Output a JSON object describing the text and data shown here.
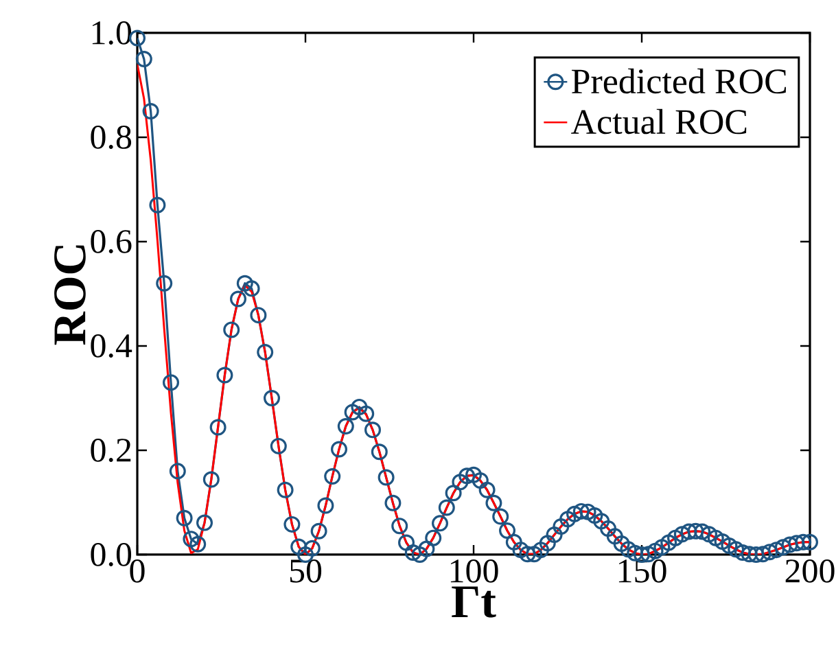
{
  "chart_data": {
    "type": "line",
    "xlabel": "Γt",
    "ylabel": "ROC",
    "xlim": [
      0,
      200
    ],
    "ylim": [
      0,
      1.0
    ],
    "xticks": [
      0,
      50,
      100,
      150,
      200
    ],
    "yticks": [
      {
        "value": 0,
        "label": "0.0"
      },
      {
        "value": 0.2,
        "label": "0.2"
      },
      {
        "value": 0.4,
        "label": "0.4"
      },
      {
        "value": 0.6,
        "label": "0.6"
      },
      {
        "value": 0.8,
        "label": "0.8"
      },
      {
        "value": 1.0,
        "label": "1.0"
      }
    ],
    "legend": "top right",
    "x": [
      0,
      2,
      4,
      6,
      8,
      10,
      12,
      14,
      16,
      18,
      20,
      22,
      24,
      26,
      28,
      30,
      32,
      34,
      36,
      38,
      40,
      42,
      44,
      46,
      48,
      50,
      52,
      54,
      56,
      58,
      60,
      62,
      64,
      66,
      68,
      70,
      72,
      74,
      76,
      78,
      80,
      82,
      84,
      86,
      88,
      90,
      92,
      94,
      96,
      98,
      100,
      102,
      104,
      106,
      108,
      110,
      112,
      114,
      116,
      118,
      120,
      122,
      124,
      126,
      128,
      130,
      132,
      134,
      136,
      138,
      140,
      142,
      144,
      146,
      148,
      150,
      152,
      154,
      156,
      158,
      160,
      162,
      164,
      166,
      168,
      170,
      172,
      174,
      176,
      178,
      180,
      182,
      184,
      186,
      188,
      190,
      192,
      194,
      196,
      198,
      200
    ],
    "series": [
      {
        "name": "Predicted ROC",
        "color": "#1f5582",
        "marker": "circle",
        "values": [
          0.99,
          0.95,
          0.85,
          0.67,
          0.52,
          0.33,
          0.16,
          0.07,
          0.03,
          0.02,
          0.061,
          0.144,
          0.244,
          0.344,
          0.431,
          0.49,
          0.52,
          0.51,
          0.459,
          0.388,
          0.3,
          0.208,
          0.124,
          0.058,
          0.015,
          0.0,
          0.012,
          0.045,
          0.094,
          0.15,
          0.202,
          0.246,
          0.273,
          0.283,
          0.27,
          0.239,
          0.197,
          0.148,
          0.099,
          0.055,
          0.023,
          0.004,
          0.0,
          0.011,
          0.032,
          0.06,
          0.09,
          0.118,
          0.139,
          0.151,
          0.153,
          0.142,
          0.124,
          0.099,
          0.073,
          0.046,
          0.024,
          0.009,
          0.001,
          0.001,
          0.009,
          0.022,
          0.038,
          0.054,
          0.068,
          0.078,
          0.083,
          0.082,
          0.075,
          0.064,
          0.05,
          0.035,
          0.021,
          0.01,
          0.003,
          0.0,
          0.001,
          0.007,
          0.014,
          0.023,
          0.032,
          0.039,
          0.044,
          0.045,
          0.044,
          0.039,
          0.032,
          0.025,
          0.017,
          0.01,
          0.004,
          0.001,
          0.0,
          0.001,
          0.005,
          0.009,
          0.014,
          0.019,
          0.022,
          0.024,
          0.024
        ]
      },
      {
        "name": "Actual ROC",
        "color": "#ff0000",
        "marker": "none",
        "values": [
          0.94,
          0.874,
          0.756,
          0.602,
          0.433,
          0.272,
          0.138,
          0.046,
          0.003,
          0.01,
          0.061,
          0.144,
          0.244,
          0.344,
          0.431,
          0.49,
          0.516,
          0.504,
          0.459,
          0.388,
          0.3,
          0.208,
          0.124,
          0.058,
          0.015,
          0.0,
          0.012,
          0.045,
          0.094,
          0.15,
          0.202,
          0.246,
          0.273,
          0.281,
          0.269,
          0.239,
          0.197,
          0.148,
          0.099,
          0.055,
          0.023,
          0.004,
          0.0,
          0.011,
          0.032,
          0.06,
          0.09,
          0.118,
          0.139,
          0.151,
          0.152,
          0.142,
          0.124,
          0.099,
          0.073,
          0.046,
          0.024,
          0.009,
          0.001,
          0.001,
          0.009,
          0.022,
          0.038,
          0.054,
          0.068,
          0.078,
          0.083,
          0.082,
          0.075,
          0.064,
          0.05,
          0.035,
          0.021,
          0.01,
          0.003,
          0.0,
          0.001,
          0.007,
          0.014,
          0.023,
          0.032,
          0.039,
          0.044,
          0.045,
          0.044,
          0.039,
          0.032,
          0.025,
          0.017,
          0.01,
          0.004,
          0.001,
          0.0,
          0.001,
          0.005,
          0.009,
          0.014,
          0.019,
          0.022,
          0.024,
          0.024
        ]
      }
    ]
  }
}
